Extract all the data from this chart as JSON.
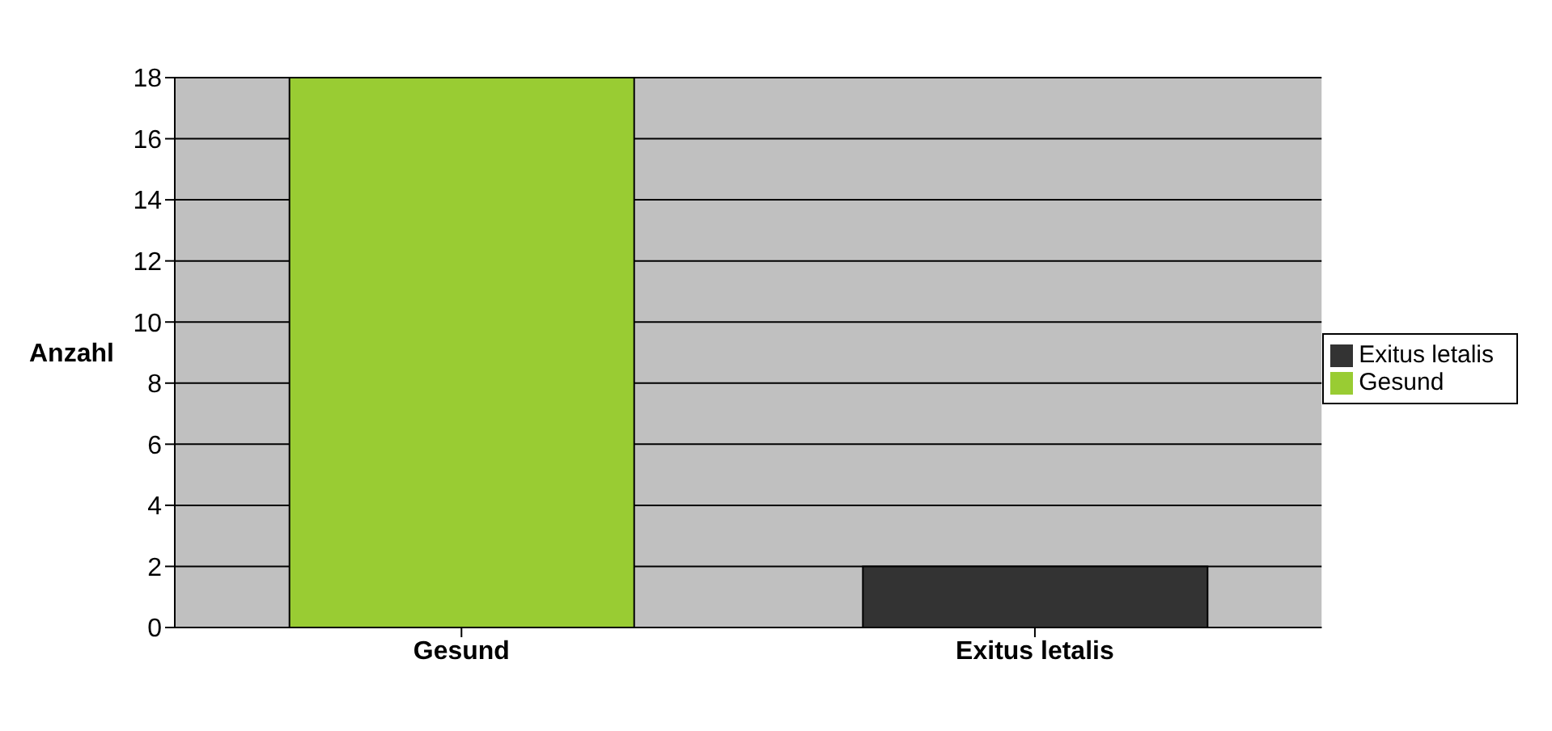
{
  "chart_data": {
    "type": "bar",
    "ylabel": "Anzahl",
    "categories": [
      "Gesund",
      "Exitus letalis"
    ],
    "series": [
      {
        "name": "Gesund",
        "color": "#99cc33",
        "values": [
          18,
          null
        ]
      },
      {
        "name": "Exitus letalis",
        "color": "#333333",
        "values": [
          null,
          2
        ]
      }
    ],
    "ylim": [
      0,
      18
    ],
    "yticks": [
      0,
      2,
      4,
      6,
      8,
      10,
      12,
      14,
      16,
      18
    ],
    "grid": "y",
    "legend": "right"
  }
}
